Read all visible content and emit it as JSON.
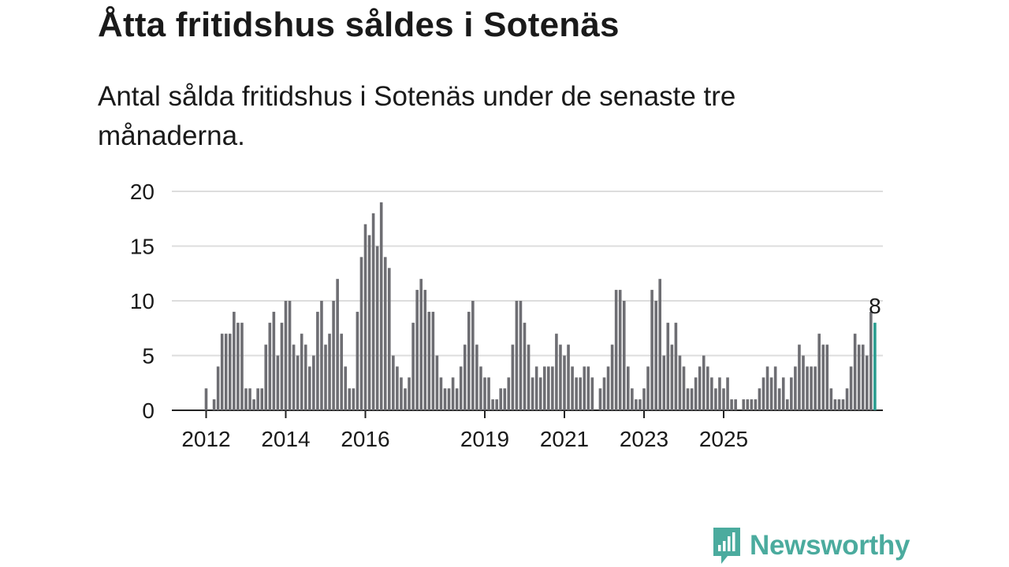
{
  "header": {
    "title": "Åtta fritidshus såldes i Sotenäs",
    "subtitle": "Antal sålda fritidshus i Sotenäs under de senaste tre månaderna."
  },
  "brand": {
    "name": "Newsworthy",
    "color": "#4bab9e",
    "icon": "newsworthy-logo-icon"
  },
  "colors": {
    "bar": "#6e6e73",
    "highlight": "#2a9d8f",
    "grid": "#dddddd",
    "axis": "#222222"
  },
  "chart_data": {
    "type": "bar",
    "title": "Åtta fritidshus såldes i Sotenäs",
    "xlabel": "",
    "ylabel": "",
    "ylim": [
      0,
      20
    ],
    "yticks": [
      0,
      5,
      10,
      15,
      20
    ],
    "grid": true,
    "x_start": "2012-01",
    "x_tick_labels": [
      "2012",
      "2014",
      "2016",
      "2019",
      "2021",
      "2023",
      "2025"
    ],
    "x_tick_indices": [
      0,
      20,
      40,
      70,
      90,
      110,
      130
    ],
    "values": [
      2,
      0,
      1,
      4,
      7,
      7,
      7,
      9,
      8,
      8,
      2,
      2,
      1,
      2,
      2,
      6,
      8,
      9,
      5,
      8,
      10,
      10,
      6,
      5,
      7,
      6,
      4,
      5,
      9,
      10,
      6,
      7,
      10,
      12,
      7,
      4,
      2,
      2,
      9,
      14,
      17,
      16,
      18,
      15,
      19,
      14,
      13,
      5,
      4,
      3,
      2,
      3,
      8,
      11,
      12,
      11,
      9,
      9,
      5,
      3,
      2,
      2,
      3,
      2,
      4,
      6,
      9,
      10,
      6,
      4,
      3,
      3,
      1,
      1,
      2,
      2,
      3,
      6,
      10,
      10,
      8,
      6,
      3,
      4,
      3,
      4,
      4,
      4,
      7,
      6,
      5,
      6,
      4,
      3,
      3,
      4,
      4,
      3,
      0,
      2,
      3,
      4,
      6,
      11,
      11,
      10,
      4,
      2,
      1,
      1,
      2,
      4,
      11,
      10,
      12,
      5,
      8,
      6,
      8,
      5,
      4,
      2,
      2,
      3,
      4,
      5,
      4,
      3,
      2,
      3,
      2,
      3,
      1,
      1,
      0,
      1,
      1,
      1,
      1,
      2,
      3,
      4,
      3,
      4,
      2,
      3,
      1,
      3,
      4,
      6,
      5,
      4,
      4,
      4,
      7,
      6,
      6,
      2,
      1,
      1,
      1,
      2,
      4,
      7,
      6,
      6,
      5,
      9,
      8
    ],
    "highlight": {
      "label": "8",
      "value": 8,
      "index": 168
    }
  }
}
